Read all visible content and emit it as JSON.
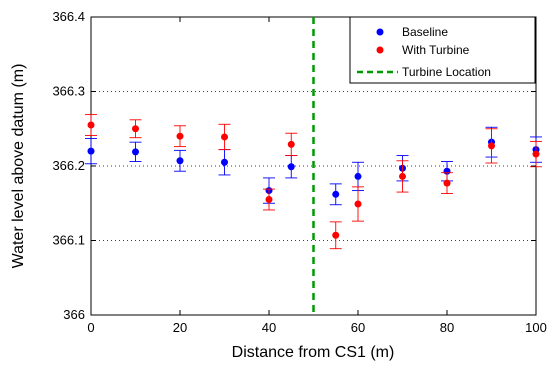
{
  "chart_data": {
    "type": "scatter",
    "xlabel": "Distance from CS1 (m)",
    "ylabel": "Water level above datum (m)",
    "xlim": [
      0,
      100
    ],
    "ylim": [
      366,
      366.4
    ],
    "xticks": [
      "0",
      "20",
      "40",
      "60",
      "80",
      "100"
    ],
    "yticks": [
      "366",
      "366.1",
      "366.2",
      "366.3",
      "366.4"
    ],
    "grid": "horizontal-dotted",
    "legend_position": "top-right",
    "series": [
      {
        "name": "Baseline",
        "color": "#0000ff",
        "points": [
          {
            "x": 0,
            "y": 366.22,
            "err": 0.017
          },
          {
            "x": 10,
            "y": 366.219,
            "err": 0.013
          },
          {
            "x": 20,
            "y": 366.207,
            "err": 0.014
          },
          {
            "x": 30,
            "y": 366.205,
            "err": 0.017
          },
          {
            "x": 40,
            "y": 366.167,
            "err": 0.017
          },
          {
            "x": 45,
            "y": 366.199,
            "err": 0.015
          },
          {
            "x": 55,
            "y": 366.162,
            "err": 0.014
          },
          {
            "x": 60,
            "y": 366.186,
            "err": 0.019
          },
          {
            "x": 70,
            "y": 366.197,
            "err": 0.017
          },
          {
            "x": 80,
            "y": 366.193,
            "err": 0.013
          },
          {
            "x": 90,
            "y": 366.232,
            "err": 0.02
          },
          {
            "x": 100,
            "y": 366.222,
            "err": 0.017
          }
        ]
      },
      {
        "name": "With Turbine",
        "color": "#ff0000",
        "points": [
          {
            "x": 0,
            "y": 366.255,
            "err": 0.014
          },
          {
            "x": 10,
            "y": 366.25,
            "err": 0.012
          },
          {
            "x": 20,
            "y": 366.24,
            "err": 0.014
          },
          {
            "x": 30,
            "y": 366.239,
            "err": 0.017
          },
          {
            "x": 40,
            "y": 366.155,
            "err": 0.014
          },
          {
            "x": 45,
            "y": 366.229,
            "err": 0.015
          },
          {
            "x": 55,
            "y": 366.107,
            "err": 0.018
          },
          {
            "x": 60,
            "y": 366.149,
            "err": 0.023
          },
          {
            "x": 70,
            "y": 366.186,
            "err": 0.021
          },
          {
            "x": 80,
            "y": 366.177,
            "err": 0.014
          },
          {
            "x": 90,
            "y": 366.227,
            "err": 0.023
          },
          {
            "x": 100,
            "y": 366.216,
            "err": 0.017
          }
        ]
      }
    ],
    "vertical_line": {
      "name": "Turbine Location",
      "x": 50,
      "color": "#009900",
      "style": "dashed"
    }
  }
}
